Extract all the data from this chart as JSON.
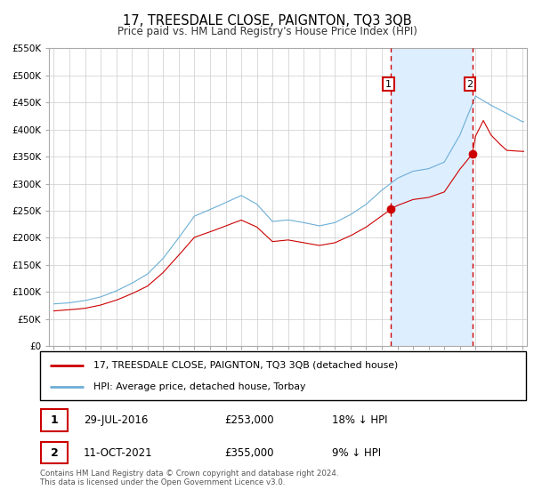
{
  "title": "17, TREESDALE CLOSE, PAIGNTON, TQ3 3QB",
  "subtitle": "Price paid vs. HM Land Registry's House Price Index (HPI)",
  "legend_line1": "17, TREESDALE CLOSE, PAIGNTON, TQ3 3QB (detached house)",
  "legend_line2": "HPI: Average price, detached house, Torbay",
  "transaction1_label": "1",
  "transaction1_date": "29-JUL-2016",
  "transaction1_price": "£253,000",
  "transaction1_hpi": "18% ↓ HPI",
  "transaction2_label": "2",
  "transaction2_date": "11-OCT-2021",
  "transaction2_price": "£355,000",
  "transaction2_hpi": "9% ↓ HPI",
  "footer": "Contains HM Land Registry data © Crown copyright and database right 2024.\nThis data is licensed under the Open Government Licence v3.0.",
  "hpi_color": "#6baed6",
  "hpi_fill_color": "#ddeeff",
  "property_color": "#cc0000",
  "dashed_vline_color": "#cc0000",
  "marker1_date_x": 2016.58,
  "marker1_price_y": 253000,
  "marker2_date_x": 2021.79,
  "marker2_price_y": 355000,
  "ylim_min": 0,
  "ylim_max": 550000,
  "xlim_min": 1994.7,
  "xlim_max": 2025.3,
  "ytick_values": [
    0,
    50000,
    100000,
    150000,
    200000,
    250000,
    300000,
    350000,
    400000,
    450000,
    500000,
    550000
  ],
  "ytick_labels": [
    "£0",
    "£50K",
    "£100K",
    "£150K",
    "£200K",
    "£250K",
    "£300K",
    "£350K",
    "£400K",
    "£450K",
    "£500K",
    "£550K"
  ],
  "xtick_values": [
    1995,
    1996,
    1997,
    1998,
    1999,
    2000,
    2001,
    2002,
    2003,
    2004,
    2005,
    2006,
    2007,
    2008,
    2009,
    2010,
    2011,
    2012,
    2013,
    2014,
    2015,
    2016,
    2017,
    2018,
    2019,
    2020,
    2021,
    2022,
    2023,
    2024,
    2025
  ]
}
